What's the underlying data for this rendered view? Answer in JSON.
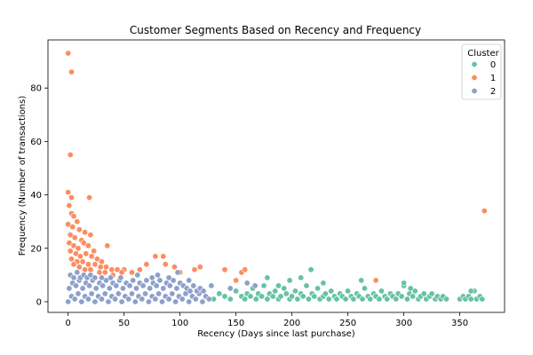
{
  "chart_data": {
    "type": "scatter",
    "title": "Customer Segments Based on Recency and Frequency",
    "xlabel": "Recency (Days since last purchase)",
    "ylabel": "Frequency (Number of transactions)",
    "xlim": [
      -18,
      390
    ],
    "ylim": [
      -4,
      98
    ],
    "xticks": [
      0,
      50,
      100,
      150,
      200,
      250,
      300,
      350
    ],
    "yticks": [
      0,
      20,
      40,
      60,
      80
    ],
    "grid": false,
    "legend": {
      "title": "Cluster",
      "placement": "top-right"
    },
    "series": [
      {
        "name": "0",
        "color": "#66c2a5",
        "points": [
          [
            130,
            1
          ],
          [
            135,
            3
          ],
          [
            140,
            2
          ],
          [
            145,
            1
          ],
          [
            150,
            4
          ],
          [
            155,
            2
          ],
          [
            158,
            1
          ],
          [
            160,
            3
          ],
          [
            163,
            2
          ],
          [
            165,
            5
          ],
          [
            168,
            1
          ],
          [
            170,
            3
          ],
          [
            173,
            2
          ],
          [
            175,
            6
          ],
          [
            178,
            1
          ],
          [
            180,
            3
          ],
          [
            183,
            2
          ],
          [
            185,
            4
          ],
          [
            188,
            1
          ],
          [
            190,
            2
          ],
          [
            193,
            5
          ],
          [
            195,
            3
          ],
          [
            198,
            1
          ],
          [
            200,
            2
          ],
          [
            203,
            4
          ],
          [
            205,
            1
          ],
          [
            208,
            3
          ],
          [
            210,
            2
          ],
          [
            213,
            6
          ],
          [
            215,
            1
          ],
          [
            218,
            3
          ],
          [
            220,
            2
          ],
          [
            223,
            5
          ],
          [
            225,
            1
          ],
          [
            228,
            2
          ],
          [
            230,
            3
          ],
          [
            233,
            1
          ],
          [
            235,
            4
          ],
          [
            238,
            2
          ],
          [
            240,
            1
          ],
          [
            243,
            3
          ],
          [
            245,
            2
          ],
          [
            248,
            1
          ],
          [
            250,
            4
          ],
          [
            253,
            2
          ],
          [
            255,
            1
          ],
          [
            258,
            3
          ],
          [
            260,
            2
          ],
          [
            263,
            1
          ],
          [
            265,
            5
          ],
          [
            268,
            2
          ],
          [
            270,
            1
          ],
          [
            273,
            3
          ],
          [
            275,
            2
          ],
          [
            278,
            1
          ],
          [
            280,
            4
          ],
          [
            283,
            2
          ],
          [
            285,
            1
          ],
          [
            288,
            3
          ],
          [
            290,
            2
          ],
          [
            293,
            1
          ],
          [
            295,
            3
          ],
          [
            298,
            2
          ],
          [
            300,
            6
          ],
          [
            303,
            1
          ],
          [
            305,
            3
          ],
          [
            308,
            2
          ],
          [
            310,
            4
          ],
          [
            313,
            1
          ],
          [
            315,
            2
          ],
          [
            318,
            3
          ],
          [
            320,
            1
          ],
          [
            323,
            2
          ],
          [
            325,
            3
          ],
          [
            328,
            1
          ],
          [
            330,
            2
          ],
          [
            333,
            1
          ],
          [
            335,
            2
          ],
          [
            338,
            1
          ],
          [
            350,
            1
          ],
          [
            353,
            2
          ],
          [
            355,
            1
          ],
          [
            358,
            2
          ],
          [
            360,
            1
          ],
          [
            363,
            4
          ],
          [
            365,
            1
          ],
          [
            368,
            2
          ],
          [
            370,
            1
          ],
          [
            178,
            9
          ],
          [
            188,
            6
          ],
          [
            198,
            8
          ],
          [
            208,
            9
          ],
          [
            217,
            12
          ],
          [
            228,
            7
          ],
          [
            262,
            8
          ],
          [
            300,
            7
          ],
          [
            306,
            5
          ],
          [
            360,
            4
          ]
        ]
      },
      {
        "name": "1",
        "color": "#fc8d62",
        "points": [
          [
            0,
            93
          ],
          [
            3,
            86
          ],
          [
            2,
            55
          ],
          [
            0,
            41
          ],
          [
            3,
            39
          ],
          [
            19,
            39
          ],
          [
            1,
            36
          ],
          [
            3,
            33
          ],
          [
            5,
            32
          ],
          [
            8,
            30
          ],
          [
            0,
            29
          ],
          [
            4,
            28
          ],
          [
            10,
            27
          ],
          [
            15,
            26
          ],
          [
            2,
            25
          ],
          [
            6,
            24
          ],
          [
            12,
            23
          ],
          [
            20,
            25
          ],
          [
            1,
            22
          ],
          [
            5,
            21
          ],
          [
            9,
            20
          ],
          [
            14,
            22
          ],
          [
            18,
            21
          ],
          [
            23,
            19
          ],
          [
            2,
            19
          ],
          [
            7,
            18
          ],
          [
            11,
            17
          ],
          [
            16,
            18
          ],
          [
            21,
            17
          ],
          [
            26,
            16
          ],
          [
            30,
            15
          ],
          [
            35,
            21
          ],
          [
            3,
            16
          ],
          [
            8,
            15
          ],
          [
            13,
            15
          ],
          [
            18,
            14
          ],
          [
            24,
            14
          ],
          [
            29,
            13
          ],
          [
            34,
            13
          ],
          [
            39,
            12
          ],
          [
            44,
            12
          ],
          [
            50,
            12
          ],
          [
            5,
            14
          ],
          [
            10,
            13
          ],
          [
            15,
            12
          ],
          [
            20,
            12
          ],
          [
            28,
            11
          ],
          [
            33,
            11
          ],
          [
            40,
            10
          ],
          [
            48,
            11
          ],
          [
            57,
            11
          ],
          [
            64,
            12
          ],
          [
            70,
            14
          ],
          [
            78,
            17
          ],
          [
            85,
            17
          ],
          [
            87,
            14
          ],
          [
            95,
            13
          ],
          [
            100,
            11
          ],
          [
            113,
            12
          ],
          [
            118,
            13
          ],
          [
            140,
            12
          ],
          [
            150,
            8
          ],
          [
            155,
            11
          ],
          [
            158,
            12
          ],
          [
            275,
            8
          ],
          [
            372,
            34
          ]
        ]
      },
      {
        "name": "2",
        "color": "#8da0cb",
        "points": [
          [
            0,
            0
          ],
          [
            3,
            2
          ],
          [
            6,
            1
          ],
          [
            9,
            3
          ],
          [
            12,
            0
          ],
          [
            15,
            2
          ],
          [
            18,
            1
          ],
          [
            21,
            3
          ],
          [
            24,
            0
          ],
          [
            27,
            2
          ],
          [
            30,
            1
          ],
          [
            33,
            3
          ],
          [
            36,
            0
          ],
          [
            39,
            2
          ],
          [
            42,
            1
          ],
          [
            45,
            3
          ],
          [
            48,
            0
          ],
          [
            51,
            2
          ],
          [
            54,
            1
          ],
          [
            57,
            3
          ],
          [
            60,
            0
          ],
          [
            63,
            2
          ],
          [
            66,
            1
          ],
          [
            69,
            3
          ],
          [
            72,
            0
          ],
          [
            75,
            2
          ],
          [
            78,
            1
          ],
          [
            81,
            3
          ],
          [
            84,
            0
          ],
          [
            87,
            2
          ],
          [
            90,
            1
          ],
          [
            93,
            3
          ],
          [
            96,
            0
          ],
          [
            99,
            2
          ],
          [
            102,
            1
          ],
          [
            105,
            3
          ],
          [
            108,
            0
          ],
          [
            111,
            2
          ],
          [
            114,
            1
          ],
          [
            117,
            3
          ],
          [
            120,
            0
          ],
          [
            123,
            2
          ],
          [
            126,
            1
          ],
          [
            1,
            5
          ],
          [
            4,
            7
          ],
          [
            7,
            6
          ],
          [
            10,
            8
          ],
          [
            13,
            5
          ],
          [
            16,
            7
          ],
          [
            19,
            6
          ],
          [
            22,
            8
          ],
          [
            25,
            5
          ],
          [
            28,
            7
          ],
          [
            31,
            6
          ],
          [
            34,
            8
          ],
          [
            37,
            5
          ],
          [
            40,
            7
          ],
          [
            43,
            6
          ],
          [
            46,
            8
          ],
          [
            49,
            5
          ],
          [
            52,
            7
          ],
          [
            55,
            6
          ],
          [
            58,
            8
          ],
          [
            61,
            5
          ],
          [
            64,
            7
          ],
          [
            67,
            6
          ],
          [
            70,
            8
          ],
          [
            73,
            5
          ],
          [
            76,
            7
          ],
          [
            79,
            6
          ],
          [
            82,
            8
          ],
          [
            85,
            5
          ],
          [
            88,
            7
          ],
          [
            91,
            6
          ],
          [
            94,
            8
          ],
          [
            97,
            5
          ],
          [
            100,
            7
          ],
          [
            103,
            6
          ],
          [
            106,
            5
          ],
          [
            109,
            4
          ],
          [
            112,
            6
          ],
          [
            115,
            4
          ],
          [
            118,
            5
          ],
          [
            121,
            4
          ],
          [
            2,
            10
          ],
          [
            5,
            9
          ],
          [
            8,
            11
          ],
          [
            11,
            9
          ],
          [
            14,
            10
          ],
          [
            17,
            9
          ],
          [
            20,
            10
          ],
          [
            24,
            9
          ],
          [
            30,
            9
          ],
          [
            38,
            9
          ],
          [
            47,
            9
          ],
          [
            62,
            10
          ],
          [
            75,
            9
          ],
          [
            80,
            10
          ],
          [
            90,
            9
          ],
          [
            98,
            11
          ],
          [
            108,
            8
          ],
          [
            128,
            6
          ],
          [
            145,
            5
          ],
          [
            160,
            7
          ],
          [
            167,
            6
          ]
        ]
      }
    ]
  }
}
